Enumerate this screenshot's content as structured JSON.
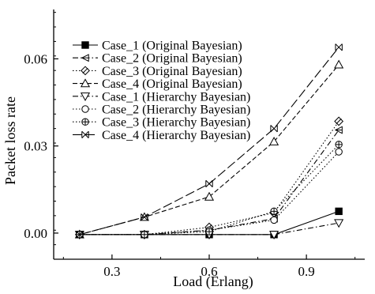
{
  "chart_data": {
    "type": "line",
    "xlabel": "Load (Erlang)",
    "ylabel": "Packet loss rate",
    "xlim": [
      0.12,
      1.08
    ],
    "ylim": [
      -0.009,
      0.077
    ],
    "x_ticks": [
      0.3,
      0.6,
      0.9
    ],
    "x_tick_labels": [
      "0.3",
      "0.6",
      "0.9"
    ],
    "y_ticks": [
      0.0,
      0.03,
      0.06
    ],
    "y_tick_labels": [
      "0.00",
      "0.03",
      "0.06"
    ],
    "grid": false,
    "legend_position": "top-left",
    "series": [
      {
        "name": "Case_1 (Original Bayesian)",
        "marker": "square-filled",
        "dash": "solid",
        "x": [
          0.2,
          0.4,
          0.6,
          0.8,
          1.0
        ],
        "y": [
          -0.0005,
          -0.0005,
          -0.0005,
          -0.0005,
          0.0075
        ]
      },
      {
        "name": "Case_2 (Original Bayesian)",
        "marker": "tri-left",
        "dash": "dashdot",
        "x": [
          0.2,
          0.4,
          0.6,
          0.8,
          1.0
        ],
        "y": [
          -0.0005,
          -0.0005,
          0.001,
          0.005,
          0.0355
        ]
      },
      {
        "name": "Case_3 (Original Bayesian)",
        "marker": "diamond-slash",
        "dash": "dotted",
        "x": [
          0.2,
          0.4,
          0.6,
          0.8,
          1.0
        ],
        "y": [
          -0.0005,
          -0.0005,
          0.002,
          0.007,
          0.0385
        ]
      },
      {
        "name": "Case_4 (Original Bayesian)",
        "marker": "tri-up",
        "dash": "dashed",
        "x": [
          0.2,
          0.4,
          0.6,
          0.8,
          1.0
        ],
        "y": [
          -0.0005,
          0.0055,
          0.0125,
          0.0315,
          0.058
        ]
      },
      {
        "name": "Case_1 (Hierarchy Bayesian)",
        "marker": "tri-down",
        "dash": "dashdot",
        "x": [
          0.2,
          0.4,
          0.6,
          0.8,
          1.0
        ],
        "y": [
          -0.0005,
          -0.0005,
          -0.0005,
          -0.0005,
          0.0035
        ]
      },
      {
        "name": "Case_2 (Hierarchy Bayesian)",
        "marker": "circle",
        "dash": "dotted",
        "x": [
          0.2,
          0.4,
          0.6,
          0.8,
          1.0
        ],
        "y": [
          -0.0005,
          -0.0005,
          0.001,
          0.0045,
          0.028
        ]
      },
      {
        "name": "Case_3 (Hierarchy Bayesian)",
        "marker": "circle-cross",
        "dash": "dotted",
        "x": [
          0.2,
          0.4,
          0.6,
          0.8,
          1.0
        ],
        "y": [
          -0.0005,
          -0.0005,
          0.0005,
          0.0075,
          0.0305
        ]
      },
      {
        "name": "Case_4 (Hierarchy Bayesian)",
        "marker": "x-cross",
        "dash": "longdash",
        "x": [
          0.2,
          0.4,
          0.6,
          0.8,
          1.0
        ],
        "y": [
          -0.0005,
          0.0055,
          0.017,
          0.036,
          0.064
        ]
      }
    ]
  }
}
